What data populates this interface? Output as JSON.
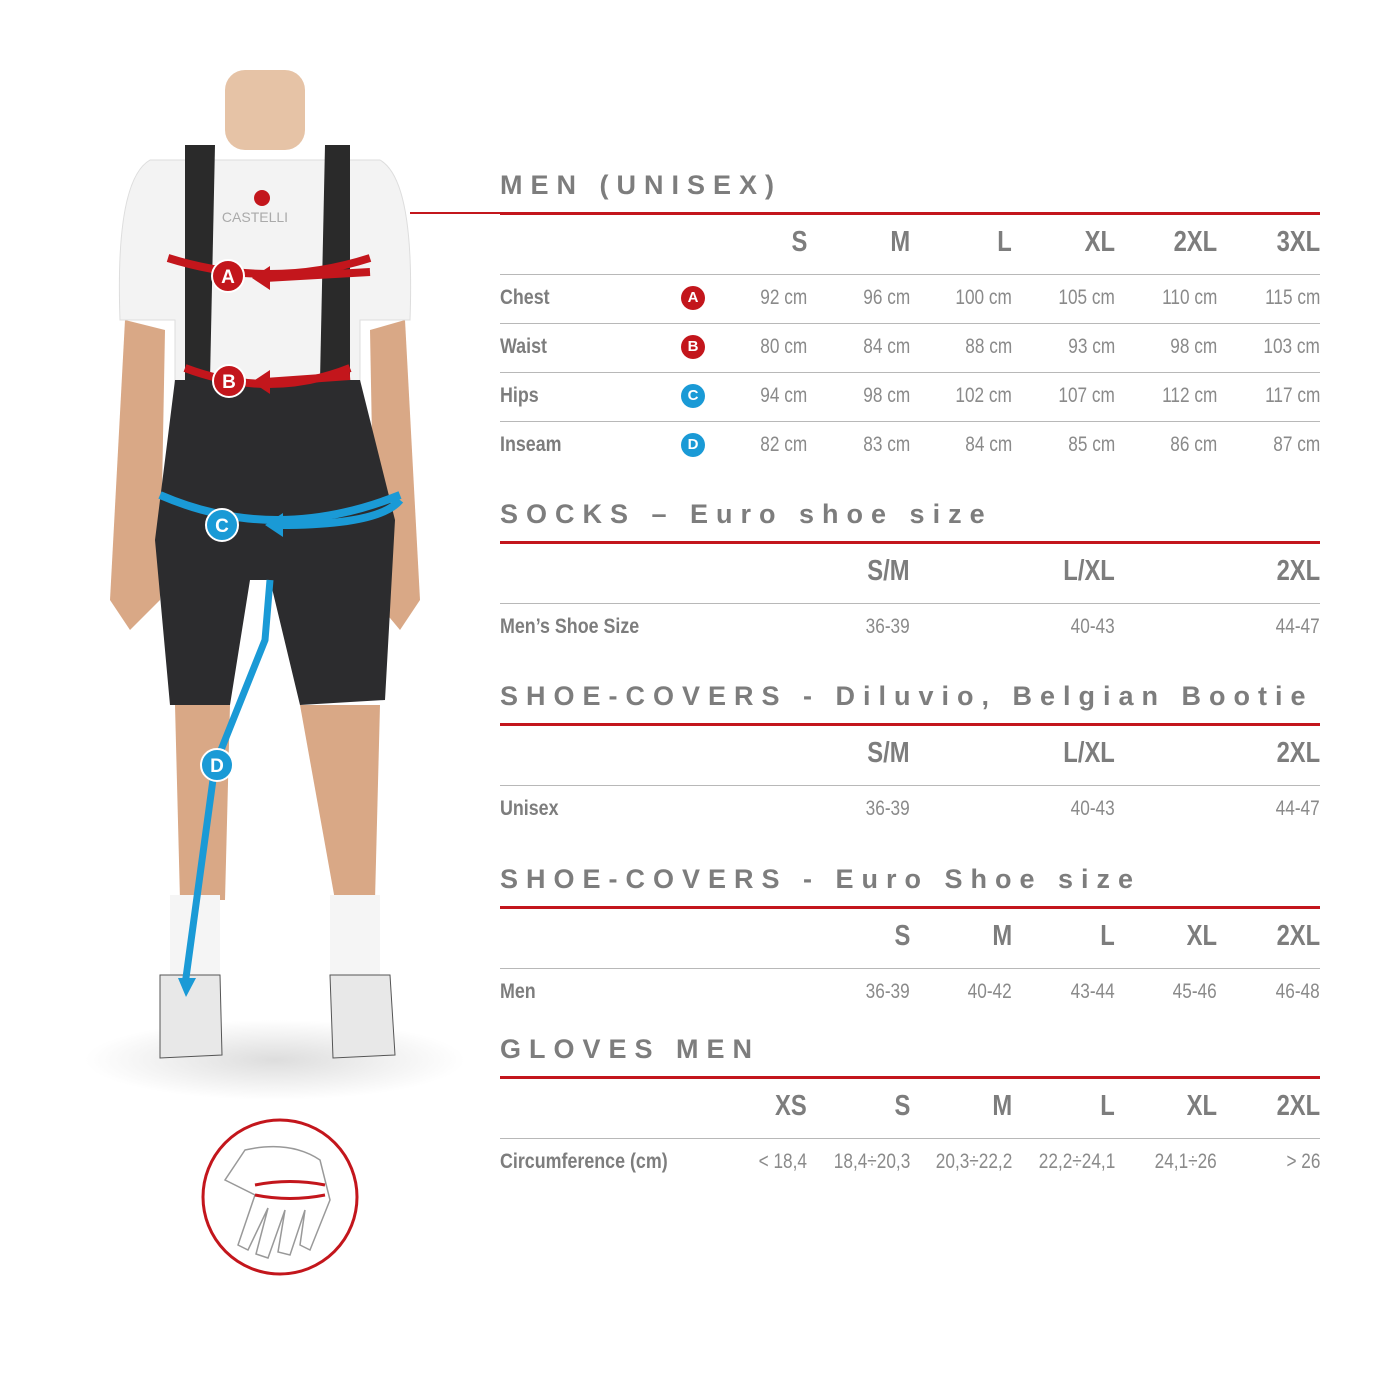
{
  "colors": {
    "text": "#7d7d7d",
    "accent_red": "#c3161c",
    "accent_blue": "#1a9ad6"
  },
  "figure": {
    "brand_on_shirt": "CASTELLI",
    "markers": [
      {
        "letter": "A",
        "color": "#c3161c"
      },
      {
        "letter": "B",
        "color": "#c3161c"
      },
      {
        "letter": "C",
        "color": "#1a9ad6"
      },
      {
        "letter": "D",
        "color": "#1a9ad6"
      }
    ],
    "hand_icon": "hand-circumference-icon"
  },
  "tables": [
    {
      "title": "MEN (UNISEX)",
      "columns": [
        "S",
        "M",
        "L",
        "XL",
        "2XL",
        "3XL"
      ],
      "rows": [
        {
          "label": "Chest",
          "marker": "A",
          "marker_color": "#c3161c",
          "values": [
            "92 cm",
            "96 cm",
            "100 cm",
            "105 cm",
            "110 cm",
            "115 cm"
          ]
        },
        {
          "label": "Waist",
          "marker": "B",
          "marker_color": "#c3161c",
          "values": [
            "80 cm",
            "84 cm",
            "88 cm",
            "93 cm",
            "98 cm",
            "103 cm"
          ]
        },
        {
          "label": "Hips",
          "marker": "C",
          "marker_color": "#1a9ad6",
          "values": [
            "94 cm",
            "98 cm",
            "102 cm",
            "107 cm",
            "112 cm",
            "117 cm"
          ]
        },
        {
          "label": "Inseam",
          "marker": "D",
          "marker_color": "#1a9ad6",
          "values": [
            "82 cm",
            "83 cm",
            "84 cm",
            "85 cm",
            "86 cm",
            "87 cm"
          ]
        }
      ]
    },
    {
      "title": "SOCKS – Euro shoe size",
      "columns": [
        "S/M",
        "L/XL",
        "2XL"
      ],
      "rows": [
        {
          "label": "Men’s Shoe Size",
          "values": [
            "36-39",
            "40-43",
            "44-47"
          ]
        }
      ]
    },
    {
      "title": "SHOE-COVERS - Diluvio, Belgian Bootie",
      "columns": [
        "S/M",
        "L/XL",
        "2XL"
      ],
      "rows": [
        {
          "label": "Unisex",
          "values": [
            "36-39",
            "40-43",
            "44-47"
          ]
        }
      ]
    },
    {
      "title": "SHOE-COVERS - Euro Shoe size",
      "columns": [
        "S",
        "M",
        "L",
        "XL",
        "2XL"
      ],
      "rows": [
        {
          "label": "Men",
          "values": [
            "36-39",
            "40-42",
            "43-44",
            "45-46",
            "46-48"
          ]
        }
      ]
    },
    {
      "title": "GLOVES MEN",
      "columns": [
        "XS",
        "S",
        "M",
        "L",
        "XL",
        "2XL"
      ],
      "rows": [
        {
          "label": "Circumference (cm)",
          "values": [
            "< 18,4",
            "18,4÷20,3",
            "20,3÷22,2",
            "22,2÷24,1",
            "24,1÷26",
            "> 26"
          ]
        }
      ]
    }
  ]
}
